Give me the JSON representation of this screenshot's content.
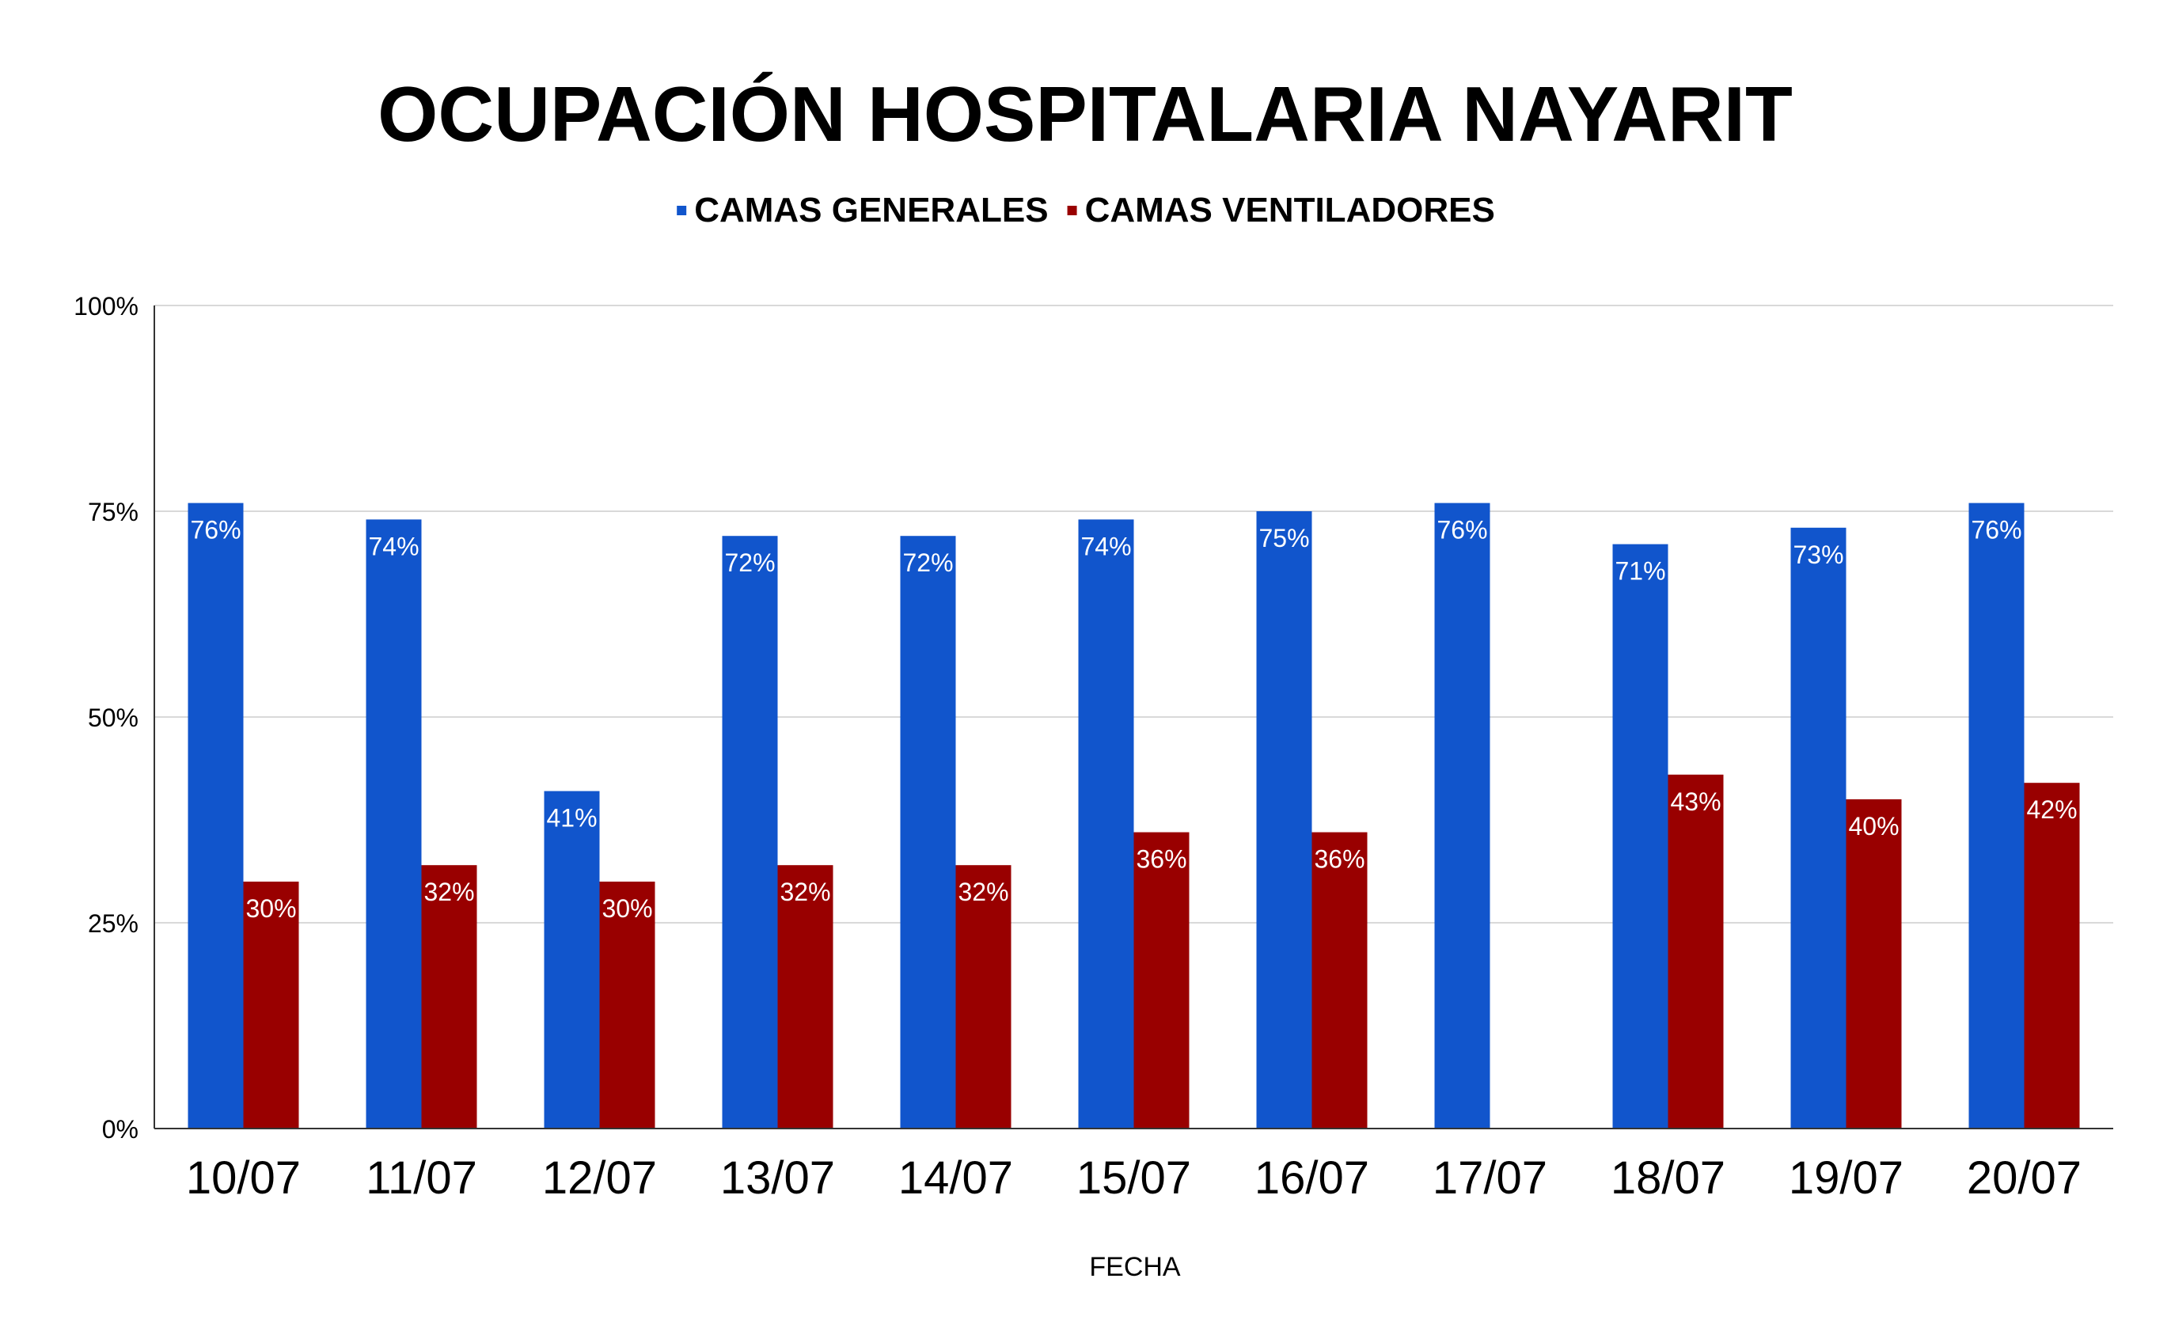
{
  "chart_data": {
    "type": "bar",
    "title": "OCUPACIÓN HOSPITALARIA NAYARIT",
    "xlabel": "FECHA",
    "ylabel": "",
    "ylim": [
      0,
      100
    ],
    "yticks": [
      {
        "value": 0,
        "label": "0%"
      },
      {
        "value": 25,
        "label": "25%"
      },
      {
        "value": 50,
        "label": "50%"
      },
      {
        "value": 75,
        "label": "75%"
      },
      {
        "value": 100,
        "label": "100%"
      }
    ],
    "grid": true,
    "legend_position": "top-center",
    "categories": [
      "10/07",
      "11/07",
      "12/07",
      "13/07",
      "14/07",
      "15/07",
      "16/07",
      "17/07",
      "18/07",
      "19/07",
      "20/07"
    ],
    "series": [
      {
        "name": "CAMAS GENERALES",
        "color": "#1155cc",
        "values": [
          76,
          74,
          41,
          72,
          72,
          74,
          75,
          76,
          71,
          73,
          76
        ],
        "labels": [
          "76%",
          "74%",
          "41%",
          "72%",
          "72%",
          "74%",
          "75%",
          "76%",
          "71%",
          "73%",
          "76%"
        ]
      },
      {
        "name": "CAMAS VENTILADORES",
        "color": "#990000",
        "values": [
          30,
          32,
          30,
          32,
          32,
          36,
          36,
          null,
          43,
          40,
          42
        ],
        "labels": [
          "30%",
          "32%",
          "30%",
          "32%",
          "32%",
          "36%",
          "36%",
          null,
          "43%",
          "40%",
          "42%"
        ]
      }
    ],
    "colors": {
      "grid": "#d9d9d9",
      "axis": "#333333",
      "label_text": "#ffffff"
    }
  }
}
